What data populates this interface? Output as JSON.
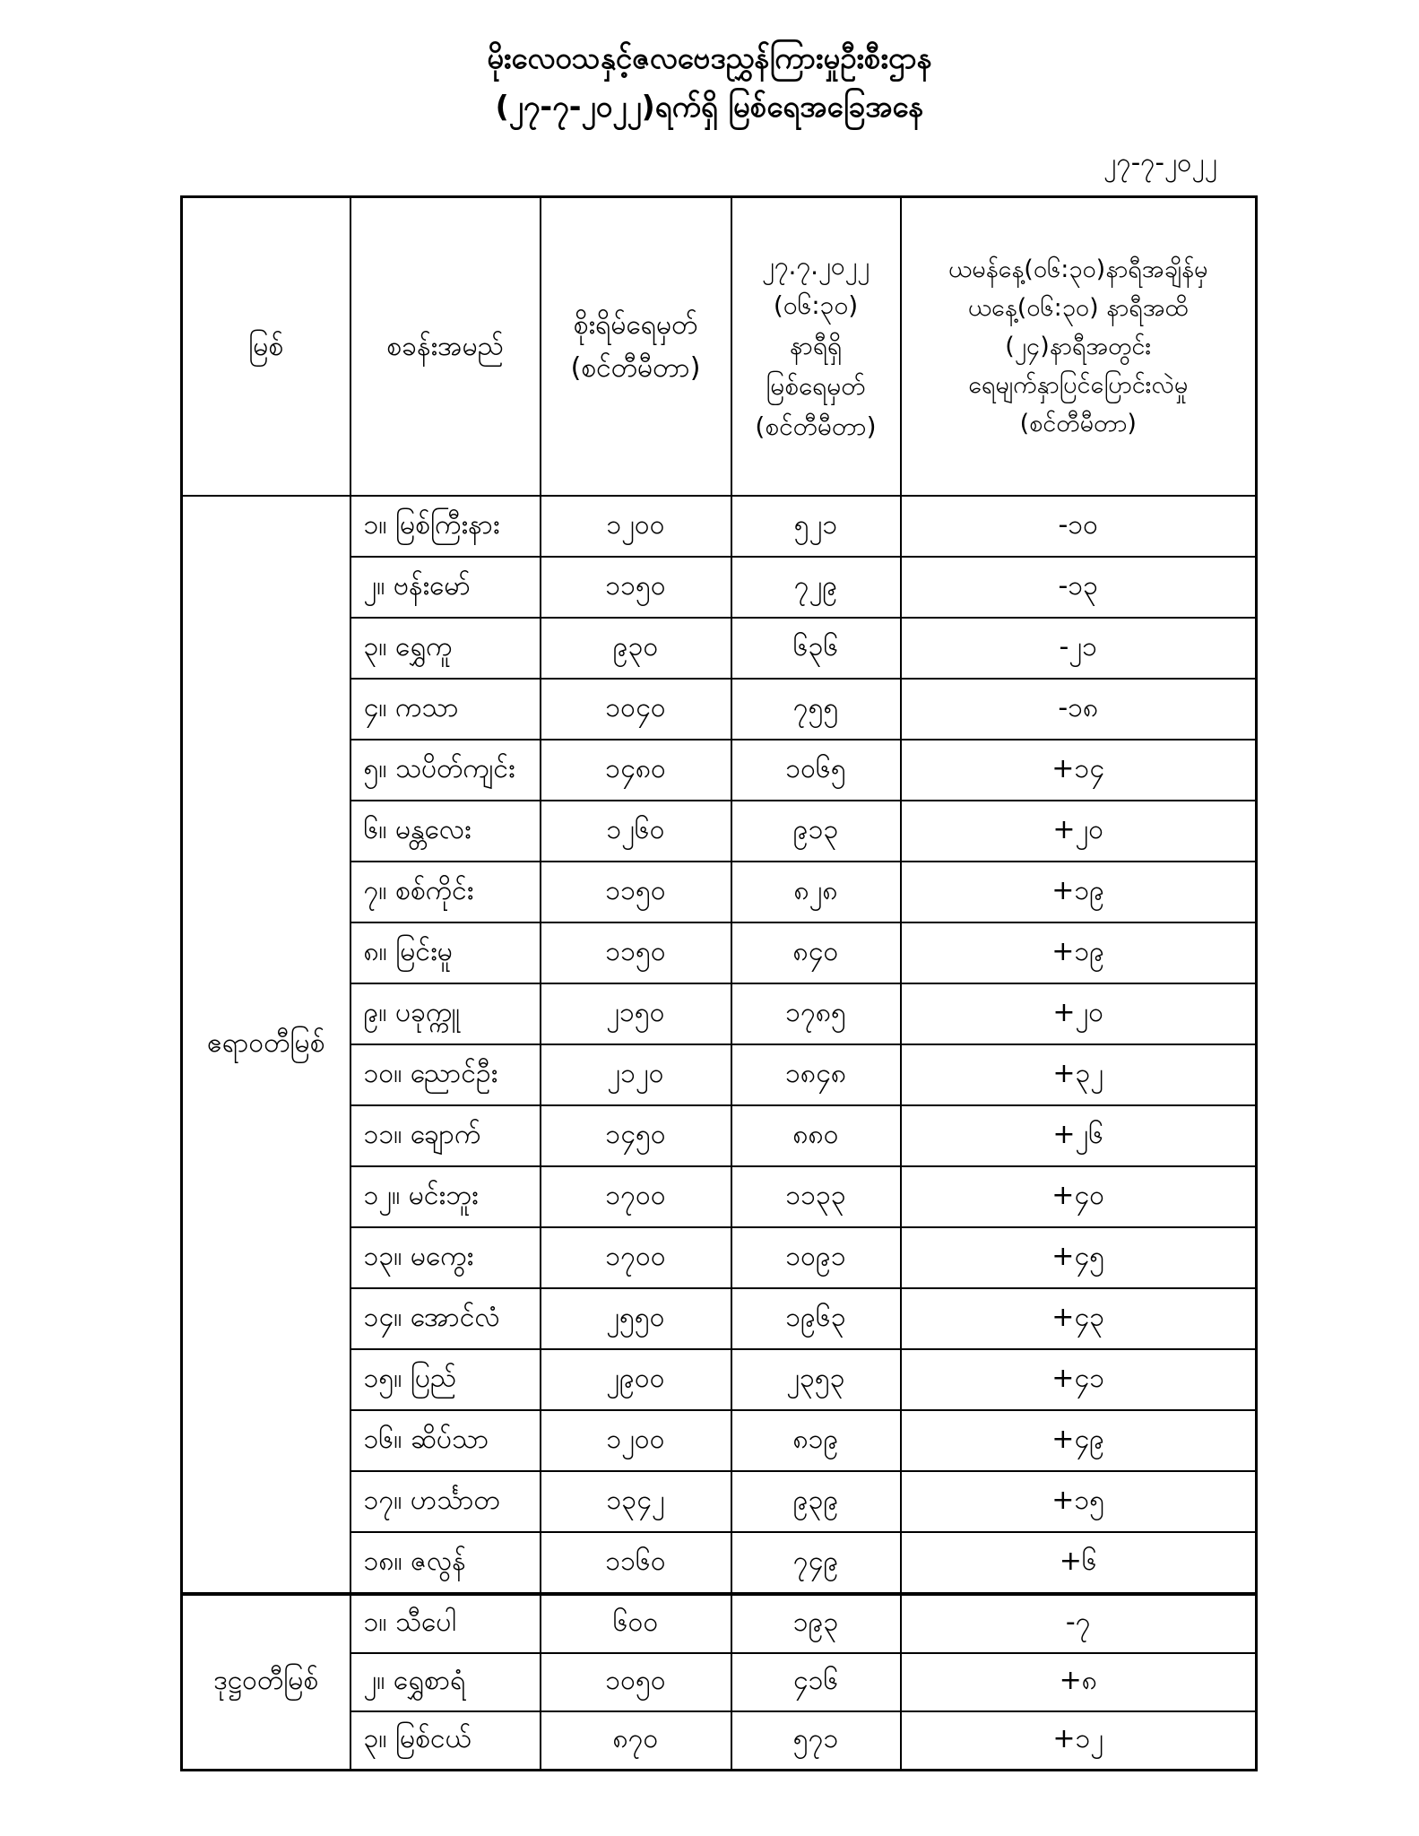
{
  "title": {
    "line1": "မိုးလေဝသနှင့်ဇလဗေဒညွှန်ကြားမှုဦးစီးဌာန",
    "line2": "(၂၇-၇-၂၀၂၂)ရက်ရှိ မြစ်ရေအခြေအနေ"
  },
  "date": "၂၇-၇-၂၀၂၂",
  "colors": {
    "text": "#000000",
    "background": "#ffffff",
    "border": "#000000"
  },
  "table": {
    "headers": {
      "river": "မြစ်",
      "station": "စခန်းအမည်",
      "danger_level": "စိုးရိမ်ရေမှတ်\n(စင်တီမီတာ)",
      "water_level": "၂၇.၇.၂၀၂၂\n(၀၆:၃၀)\nနာရီရှိ\nမြစ်ရေမှတ်\n(စင်တီမီတာ)",
      "change": "ယမန်နေ့(၀၆:၃၀)နာရီအချိန်မှ\nယနေ့(၀၆:၃၀) နာရီအထိ\n(၂၄)နာရီအတွင်း\nရေမျက်နှာပြင်ပြောင်းလဲမှု\n(စင်တီမီတာ)"
    },
    "sections": [
      {
        "river": "ဧရာဝတီမြစ်",
        "rows": [
          {
            "station": "၁။ မြစ်ကြီးနား",
            "danger_level": "၁၂၀၀",
            "water_level": "၅၂၁",
            "change": "-၁၀"
          },
          {
            "station": "၂။ ဗန်းမော်",
            "danger_level": "၁၁၅၀",
            "water_level": "၇၂၉",
            "change": "-၁၃"
          },
          {
            "station": "၃။ ရွှေကူ",
            "danger_level": "၉၃၀",
            "water_level": "၆၃၆",
            "change": "-၂၁"
          },
          {
            "station": "၄။ ကသာ",
            "danger_level": "၁၀၄၀",
            "water_level": "၇၅၅",
            "change": "-၁၈"
          },
          {
            "station": "၅။ သပိတ်ကျင်း",
            "danger_level": "၁၄၈၀",
            "water_level": "၁၀၆၅",
            "change": "+၁၄"
          },
          {
            "station": "၆။ မန္တလေး",
            "danger_level": "၁၂၆၀",
            "water_level": "၉၁၃",
            "change": "+၂၀"
          },
          {
            "station": "၇။ စစ်ကိုင်း",
            "danger_level": "၁၁၅၀",
            "water_level": "၈၂၈",
            "change": "+၁၉"
          },
          {
            "station": "၈။ မြင်းမူ",
            "danger_level": "၁၁၅၀",
            "water_level": "၈၄၀",
            "change": "+၁၉"
          },
          {
            "station": "၉။ ပခုက္ကူ",
            "danger_level": "၂၁၅၀",
            "water_level": "၁၇၈၅",
            "change": "+၂၀"
          },
          {
            "station": "၁၀။ ညောင်ဦး",
            "danger_level": "၂၁၂၀",
            "water_level": "၁၈၄၈",
            "change": "+၃၂"
          },
          {
            "station": "၁၁။ ချောက်",
            "danger_level": "၁၄၅၀",
            "water_level": "၈၈၀",
            "change": "+၂၆"
          },
          {
            "station": "၁၂။ မင်းဘူး",
            "danger_level": "၁၇၀၀",
            "water_level": "၁၁၃၃",
            "change": "+၄၀"
          },
          {
            "station": "၁၃။ မကွေး",
            "danger_level": "၁၇၀၀",
            "water_level": "၁၀၉၁",
            "change": "+၄၅"
          },
          {
            "station": "၁၄။ အောင်လံ",
            "danger_level": "၂၅၅၀",
            "water_level": "၁၉၆၃",
            "change": "+၄၃"
          },
          {
            "station": "၁၅။ ပြည်",
            "danger_level": "၂၉၀၀",
            "water_level": "၂၃၅၃",
            "change": "+၄၁"
          },
          {
            "station": "၁၆။ ဆိပ်သာ",
            "danger_level": "၁၂၀၀",
            "water_level": "၈၁၉",
            "change": "+၄၉"
          },
          {
            "station": "၁၇။ ဟင်္သာတ",
            "danger_level": "၁၃၄၂",
            "water_level": "၉၃၉",
            "change": "+၁၅"
          },
          {
            "station": "၁၈။ ဇလွန်",
            "danger_level": "၁၁၆၀",
            "water_level": "၇၄၉",
            "change": "+၆"
          }
        ]
      },
      {
        "river": "ဒုဋ္ဌဝတီမြစ်",
        "rows": [
          {
            "station": "၁။ သီပေါ",
            "danger_level": "၆၀၀",
            "water_level": "၁၉၃",
            "change": "-၇"
          },
          {
            "station": "၂။ ရွှေစာရံ",
            "danger_level": "၁၀၅၀",
            "water_level": "၄၁၆",
            "change": "+၈"
          },
          {
            "station": "၃။ မြစ်ငယ်",
            "danger_level": "၈၇၀",
            "water_level": "၅၇၁",
            "change": "+၁၂"
          }
        ]
      }
    ]
  }
}
